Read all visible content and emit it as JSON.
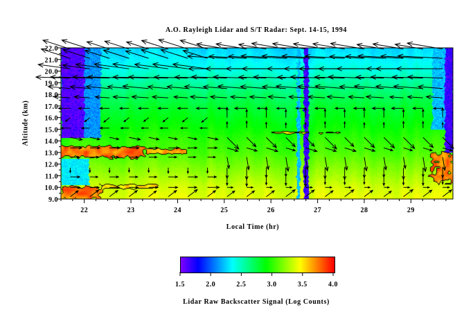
{
  "chart_data": {
    "type": "heatmap",
    "title": "A.O. Rayleigh Lidar and S/T Radar:  Sept. 14-15, 1994",
    "xlabel": "Local Time (hr)",
    "ylabel": "Altitude (km)",
    "xlim": [
      21.5,
      29.9
    ],
    "ylim": [
      9.0,
      22.0
    ],
    "x_ticks": [
      22,
      23,
      24,
      25,
      26,
      27,
      28,
      29
    ],
    "x_tick_labels": [
      "22",
      "23",
      "24",
      "25",
      "26",
      "27",
      "28",
      "29"
    ],
    "y_ticks": [
      9,
      10,
      11,
      12,
      13,
      14,
      15,
      16,
      17,
      18,
      19,
      20,
      21,
      22
    ],
    "y_tick_labels": [
      "9.0",
      "10.0",
      "11.0",
      "12.0",
      "13.0",
      "14.0",
      "15.0",
      "16.0",
      "17.0",
      "18.0",
      "19.0",
      "20.0",
      "21.0",
      "22.0"
    ],
    "colorbar": {
      "label": "Lidar Raw Backscatter Signal (Log Counts)",
      "range": [
        1.5,
        4.0
      ],
      "ticks": [
        1.5,
        2.0,
        2.5,
        3.0,
        3.5,
        4.0
      ],
      "tick_labels": [
        "1.5",
        "2.0",
        "2.5",
        "3.0",
        "3.5",
        "4.0"
      ],
      "colormap": "rainbow purple-blue-cyan-green-yellow-red"
    },
    "background_profile": {
      "altitude_km": [
        9,
        10,
        11,
        12,
        13,
        14,
        15,
        16,
        17,
        18,
        19,
        20,
        21,
        22
      ],
      "signal": [
        3.4,
        3.35,
        3.25,
        3.15,
        3.05,
        3.0,
        2.92,
        2.85,
        2.78,
        2.68,
        2.55,
        2.42,
        2.32,
        2.25
      ]
    },
    "low_signal_bands": [
      {
        "time": [
          21.5,
          22.0
        ],
        "altitude": [
          14.3,
          22.0
        ],
        "signal": 1.6
      },
      {
        "time": [
          22.0,
          22.35
        ],
        "altitude": [
          14.3,
          22.0
        ],
        "signal": 2.1
      },
      {
        "time": [
          21.5,
          22.1
        ],
        "altitude": [
          10.2,
          12.5
        ],
        "signal": 2.3
      },
      {
        "time": [
          26.55,
          26.62
        ],
        "altitude": [
          9.0,
          22.0
        ],
        "signal": 2.2
      },
      {
        "time": [
          26.7,
          26.8
        ],
        "altitude": [
          9.0,
          22.0
        ],
        "signal": 1.65
      },
      {
        "time": [
          29.45,
          29.72
        ],
        "altitude": [
          15.0,
          22.0
        ],
        "signal": 2.2
      },
      {
        "time": [
          29.72,
          29.9
        ],
        "altitude": [
          13.0,
          22.0
        ],
        "signal": 1.65
      }
    ],
    "high_signal_regions": [
      {
        "time": [
          21.5,
          23.3
        ],
        "altitude": [
          12.6,
          13.6
        ],
        "signal": 3.9
      },
      {
        "time": [
          23.3,
          24.2
        ],
        "altitude": [
          12.9,
          13.4
        ],
        "signal": 3.85
      },
      {
        "time": [
          21.5,
          22.35
        ],
        "altitude": [
          9.0,
          10.1
        ],
        "signal": 3.9
      },
      {
        "time": [
          22.35,
          23.6
        ],
        "altitude": [
          9.9,
          10.25
        ],
        "signal": 3.65
      },
      {
        "time": [
          26.0,
          27.6
        ],
        "altitude": [
          14.68,
          14.82
        ],
        "signal": 3.7
      },
      {
        "time": [
          29.45,
          29.9
        ],
        "altitude": [
          10.4,
          12.8
        ],
        "signal": 3.9
      }
    ],
    "wind_vectors": {
      "times_hr": [
        21.7,
        22.12,
        22.54,
        22.96,
        23.38,
        23.8,
        24.22,
        24.64,
        25.06,
        25.48,
        25.9,
        26.32,
        26.74,
        27.16,
        27.58,
        28.0,
        28.42,
        28.84,
        29.26,
        29.68
      ],
      "units": "m/s",
      "rows": [
        {
          "altitude_km": 21.9,
          "early": [
            -25,
            8
          ],
          "late": [
            -30,
            5
          ]
        },
        {
          "altitude_km": 21.1,
          "early": [
            -25,
            8
          ],
          "late": [
            -38,
            2
          ]
        },
        {
          "altitude_km": 20.2,
          "early": [
            -30,
            4
          ],
          "late": [
            -40,
            0
          ]
        },
        {
          "altitude_km": 19.4,
          "early": [
            -35,
            1
          ],
          "late": [
            -30,
            1
          ]
        },
        {
          "altitude_km": 18.5,
          "early": [
            -22,
            2
          ],
          "late": [
            -25,
            2
          ]
        },
        {
          "altitude_km": 17.7,
          "early": [
            -15,
            1
          ],
          "late": [
            -15,
            1
          ]
        },
        {
          "altitude_km": 16.8,
          "early": [
            -10,
            0
          ],
          "late": [
            -10,
            0
          ]
        },
        {
          "altitude_km": 16.0,
          "early": [
            -5,
            -4
          ],
          "late": [
            0,
            9
          ]
        },
        {
          "altitude_km": 15.1,
          "early": [
            -8,
            0
          ],
          "late": [
            0,
            6
          ]
        },
        {
          "altitude_km": 14.3,
          "early": [
            10,
            -2
          ],
          "late": [
            10,
            -10
          ]
        },
        {
          "altitude_km": 13.4,
          "early": [
            10,
            0
          ],
          "late": [
            10,
            -3
          ]
        },
        {
          "altitude_km": 12.6,
          "early": [
            8,
            0
          ],
          "late": [
            2,
            -12
          ]
        },
        {
          "altitude_km": 11.7,
          "early": [
            0,
            -5
          ],
          "late": [
            0,
            -10
          ]
        },
        {
          "altitude_km": 10.9,
          "early": [
            8,
            0
          ],
          "late": [
            0,
            -8
          ]
        },
        {
          "altitude_km": 10.0,
          "early": [
            10,
            0
          ],
          "late": [
            6,
            0
          ]
        },
        {
          "altitude_km": 9.2,
          "early": [
            8,
            6
          ],
          "late": [
            8,
            6
          ]
        }
      ],
      "regime_change_hr": 25.0
    }
  }
}
